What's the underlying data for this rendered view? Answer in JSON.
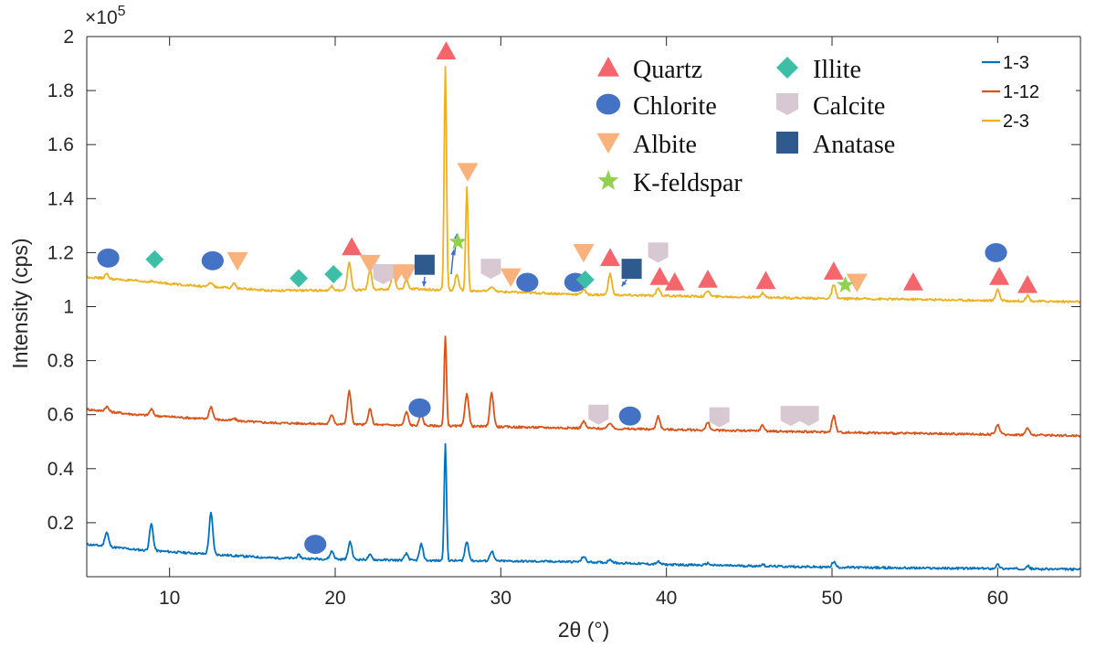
{
  "chart_data": {
    "type": "line",
    "xlabel": "2θ (°)",
    "ylabel": "Intensity (cps)",
    "y_multiplier": "×10",
    "y_multiplier_exp": "5",
    "xlim": [
      5,
      65
    ],
    "ylim": [
      0,
      2
    ],
    "xticks": [
      10,
      20,
      30,
      40,
      50,
      60
    ],
    "yticks": [
      0.2,
      0.4,
      0.6,
      0.8,
      1,
      1.2,
      1.4,
      1.6,
      1.8,
      2
    ],
    "grid": false,
    "legend_placement": "top-right",
    "series": [
      {
        "name": "1-3",
        "color": "#0072BD",
        "baseline": [
          [
            5,
            0.12
          ],
          [
            8,
            0.1
          ],
          [
            12,
            0.085
          ],
          [
            16,
            0.07
          ],
          [
            20,
            0.065
          ],
          [
            25,
            0.06
          ],
          [
            30,
            0.058
          ],
          [
            35,
            0.055
          ],
          [
            40,
            0.045
          ],
          [
            45,
            0.04
          ],
          [
            50,
            0.035
          ],
          [
            55,
            0.032
          ],
          [
            60,
            0.03
          ],
          [
            65,
            0.027
          ]
        ],
        "peaks": [
          [
            6.2,
            0.165
          ],
          [
            8.9,
            0.195
          ],
          [
            12.5,
            0.235
          ],
          [
            17.8,
            0.08
          ],
          [
            19.8,
            0.095
          ],
          [
            20.9,
            0.13
          ],
          [
            22.1,
            0.08
          ],
          [
            24.3,
            0.085
          ],
          [
            25.2,
            0.12
          ],
          [
            26.65,
            0.49
          ],
          [
            27.95,
            0.13
          ],
          [
            29.45,
            0.095
          ],
          [
            35.0,
            0.075
          ],
          [
            36.6,
            0.065
          ],
          [
            39.5,
            0.055
          ],
          [
            42.5,
            0.05
          ],
          [
            45.8,
            0.045
          ],
          [
            50.1,
            0.055
          ],
          [
            60.0,
            0.045
          ],
          [
            61.8,
            0.04
          ]
        ]
      },
      {
        "name": "1-12",
        "color": "#D95319",
        "baseline": [
          [
            5,
            0.62
          ],
          [
            8,
            0.6
          ],
          [
            12,
            0.585
          ],
          [
            16,
            0.57
          ],
          [
            20,
            0.565
          ],
          [
            25,
            0.56
          ],
          [
            30,
            0.555
          ],
          [
            35,
            0.55
          ],
          [
            40,
            0.545
          ],
          [
            45,
            0.54
          ],
          [
            50,
            0.535
          ],
          [
            55,
            0.53
          ],
          [
            60,
            0.527
          ],
          [
            65,
            0.522
          ]
        ],
        "peaks": [
          [
            6.2,
            0.63
          ],
          [
            8.9,
            0.62
          ],
          [
            12.5,
            0.63
          ],
          [
            13.9,
            0.585
          ],
          [
            19.8,
            0.6
          ],
          [
            20.85,
            0.69
          ],
          [
            22.1,
            0.62
          ],
          [
            24.3,
            0.61
          ],
          [
            25.2,
            0.6
          ],
          [
            26.65,
            0.89
          ],
          [
            27.95,
            0.68
          ],
          [
            29.45,
            0.68
          ],
          [
            35.0,
            0.575
          ],
          [
            36.6,
            0.57
          ],
          [
            39.5,
            0.595
          ],
          [
            42.5,
            0.57
          ],
          [
            45.8,
            0.56
          ],
          [
            50.1,
            0.595
          ],
          [
            60.0,
            0.565
          ],
          [
            61.8,
            0.55
          ]
        ]
      },
      {
        "name": "2-3",
        "color": "#EDB120",
        "baseline": [
          [
            5,
            1.11
          ],
          [
            8,
            1.095
          ],
          [
            12,
            1.075
          ],
          [
            16,
            1.06
          ],
          [
            20,
            1.06
          ],
          [
            25,
            1.065
          ],
          [
            30,
            1.055
          ],
          [
            35,
            1.045
          ],
          [
            40,
            1.04
          ],
          [
            45,
            1.035
          ],
          [
            50,
            1.03
          ],
          [
            55,
            1.027
          ],
          [
            60,
            1.022
          ],
          [
            65,
            1.018
          ]
        ],
        "peaks": [
          [
            6.2,
            1.12
          ],
          [
            8.9,
            1.095
          ],
          [
            12.5,
            1.09
          ],
          [
            13.9,
            1.085
          ],
          [
            19.8,
            1.075
          ],
          [
            20.85,
            1.165
          ],
          [
            22.1,
            1.135
          ],
          [
            23.5,
            1.125
          ],
          [
            24.3,
            1.1
          ],
          [
            26.65,
            1.89
          ],
          [
            27.35,
            1.12
          ],
          [
            27.95,
            1.445
          ],
          [
            29.45,
            1.075
          ],
          [
            35.0,
            1.065
          ],
          [
            36.6,
            1.12
          ],
          [
            39.5,
            1.07
          ],
          [
            42.5,
            1.06
          ],
          [
            45.8,
            1.05
          ],
          [
            50.1,
            1.08
          ],
          [
            60.0,
            1.065
          ],
          [
            61.8,
            1.04
          ]
        ]
      }
    ],
    "mineral_legend": [
      {
        "name": "Quartz",
        "symbol": "triangle-up",
        "color": "#F4666C"
      },
      {
        "name": "Chlorite",
        "symbol": "circle",
        "color": "#4472C4"
      },
      {
        "name": "Albite",
        "symbol": "triangle-down",
        "color": "#F9B27C"
      },
      {
        "name": "K-feldspar",
        "symbol": "star",
        "color": "#92D050"
      },
      {
        "name": "Illite",
        "symbol": "diamond",
        "color": "#3CBFA6"
      },
      {
        "name": "Calcite",
        "symbol": "pentagon",
        "color": "#D8C8D2"
      },
      {
        "name": "Anatase",
        "symbol": "square",
        "color": "#2E5A8E"
      }
    ],
    "markers": [
      {
        "m": "Quartz",
        "x": 26.7,
        "y": 1.945
      },
      {
        "m": "Quartz",
        "x": 21.0,
        "y": 1.22
      },
      {
        "m": "Quartz",
        "x": 36.6,
        "y": 1.18
      },
      {
        "m": "Quartz",
        "x": 39.6,
        "y": 1.11
      },
      {
        "m": "Quartz",
        "x": 40.5,
        "y": 1.09
      },
      {
        "m": "Quartz",
        "x": 42.5,
        "y": 1.1
      },
      {
        "m": "Quartz",
        "x": 46.0,
        "y": 1.095
      },
      {
        "m": "Quartz",
        "x": 50.1,
        "y": 1.13
      },
      {
        "m": "Quartz",
        "x": 54.9,
        "y": 1.09
      },
      {
        "m": "Quartz",
        "x": 60.1,
        "y": 1.11
      },
      {
        "m": "Quartz",
        "x": 61.8,
        "y": 1.08
      },
      {
        "m": "Chlorite",
        "x": 6.3,
        "y": 1.18
      },
      {
        "m": "Chlorite",
        "x": 12.6,
        "y": 1.17
      },
      {
        "m": "Chlorite",
        "x": 31.6,
        "y": 1.09
      },
      {
        "m": "Chlorite",
        "x": 34.5,
        "y": 1.09
      },
      {
        "m": "Chlorite",
        "x": 59.9,
        "y": 1.2
      },
      {
        "m": "Chlorite",
        "x": 25.1,
        "y": 0.625
      },
      {
        "m": "Chlorite",
        "x": 37.8,
        "y": 0.595
      },
      {
        "m": "Chlorite",
        "x": 18.8,
        "y": 0.12
      },
      {
        "m": "Albite",
        "x": 14.1,
        "y": 1.17
      },
      {
        "m": "Albite",
        "x": 22.1,
        "y": 1.16
      },
      {
        "m": "Albite",
        "x": 23.7,
        "y": 1.125
      },
      {
        "m": "Albite",
        "x": 24.3,
        "y": 1.125
      },
      {
        "m": "Albite",
        "x": 28.0,
        "y": 1.5
      },
      {
        "m": "Albite",
        "x": 30.6,
        "y": 1.11
      },
      {
        "m": "Albite",
        "x": 35.0,
        "y": 1.2
      },
      {
        "m": "Albite",
        "x": 51.5,
        "y": 1.09
      },
      {
        "m": "K-feldspar",
        "x": 27.4,
        "y": 1.24
      },
      {
        "m": "K-feldspar",
        "x": 50.8,
        "y": 1.08
      },
      {
        "m": "Illite",
        "x": 9.1,
        "y": 1.175
      },
      {
        "m": "Illite",
        "x": 17.8,
        "y": 1.105
      },
      {
        "m": "Illite",
        "x": 19.9,
        "y": 1.12
      },
      {
        "m": "Illite",
        "x": 35.1,
        "y": 1.1
      },
      {
        "m": "Calcite",
        "x": 22.9,
        "y": 1.12
      },
      {
        "m": "Calcite",
        "x": 29.4,
        "y": 1.14
      },
      {
        "m": "Calcite",
        "x": 39.5,
        "y": 1.2
      },
      {
        "m": "Calcite",
        "x": 35.9,
        "y": 0.6
      },
      {
        "m": "Calcite",
        "x": 43.2,
        "y": 0.59
      },
      {
        "m": "Calcite",
        "x": 47.5,
        "y": 0.595
      },
      {
        "m": "Calcite",
        "x": 48.6,
        "y": 0.595
      },
      {
        "m": "Anatase",
        "x": 25.4,
        "y": 1.155
      },
      {
        "m": "Anatase",
        "x": 37.9,
        "y": 1.14
      }
    ],
    "arrows": [
      {
        "from": [
          25.4,
          1.11
        ],
        "to": [
          25.35,
          1.075
        ]
      },
      {
        "from": [
          27.2,
          1.19
        ],
        "to": [
          27.35,
          1.27
        ]
      },
      {
        "from": [
          27.0,
          1.12
        ],
        "to": [
          27.15,
          1.21
        ]
      },
      {
        "from": [
          37.6,
          1.1
        ],
        "to": [
          37.3,
          1.075
        ]
      }
    ]
  }
}
